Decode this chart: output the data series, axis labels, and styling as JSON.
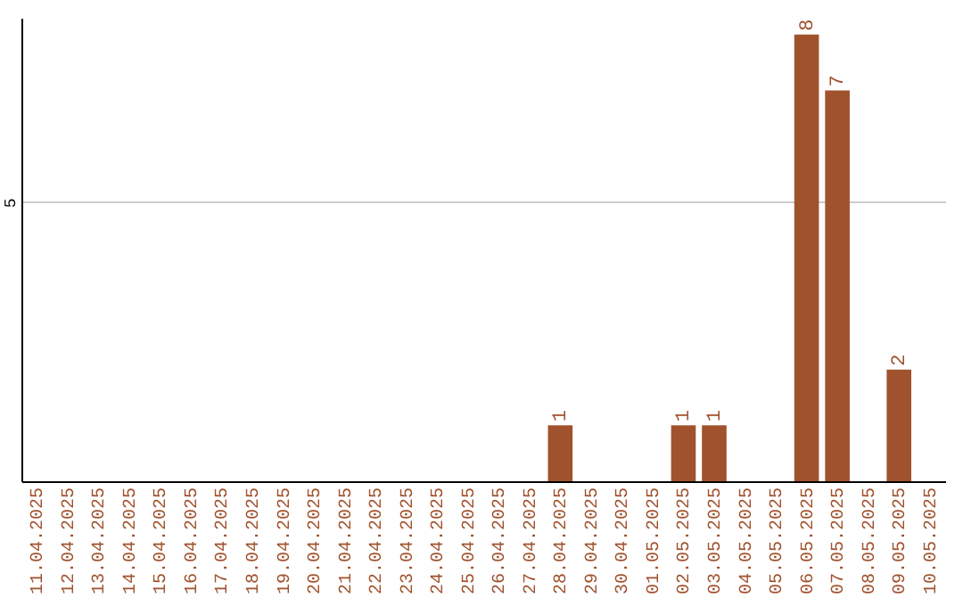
{
  "chart_data": {
    "type": "bar",
    "categories": [
      "11.04.2025",
      "12.04.2025",
      "13.04.2025",
      "14.04.2025",
      "15.04.2025",
      "16.04.2025",
      "17.04.2025",
      "18.04.2025",
      "19.04.2025",
      "20.04.2025",
      "21.04.2025",
      "22.04.2025",
      "23.04.2025",
      "24.04.2025",
      "25.04.2025",
      "26.04.2025",
      "27.04.2025",
      "28.04.2025",
      "29.04.2025",
      "30.04.2025",
      "01.05.2025",
      "02.05.2025",
      "03.05.2025",
      "04.05.2025",
      "05.05.2025",
      "06.05.2025",
      "07.05.2025",
      "08.05.2025",
      "09.05.2025",
      "10.05.2025"
    ],
    "values": [
      null,
      null,
      null,
      null,
      null,
      null,
      null,
      null,
      null,
      null,
      null,
      null,
      null,
      null,
      null,
      null,
      null,
      1,
      null,
      null,
      null,
      1,
      1,
      null,
      null,
      8,
      7,
      null,
      2,
      null
    ],
    "color": "#a0522d",
    "ylim": [
      0,
      8.3
    ],
    "yticks": [
      5
    ],
    "grid": "y",
    "data_labels": true
  }
}
